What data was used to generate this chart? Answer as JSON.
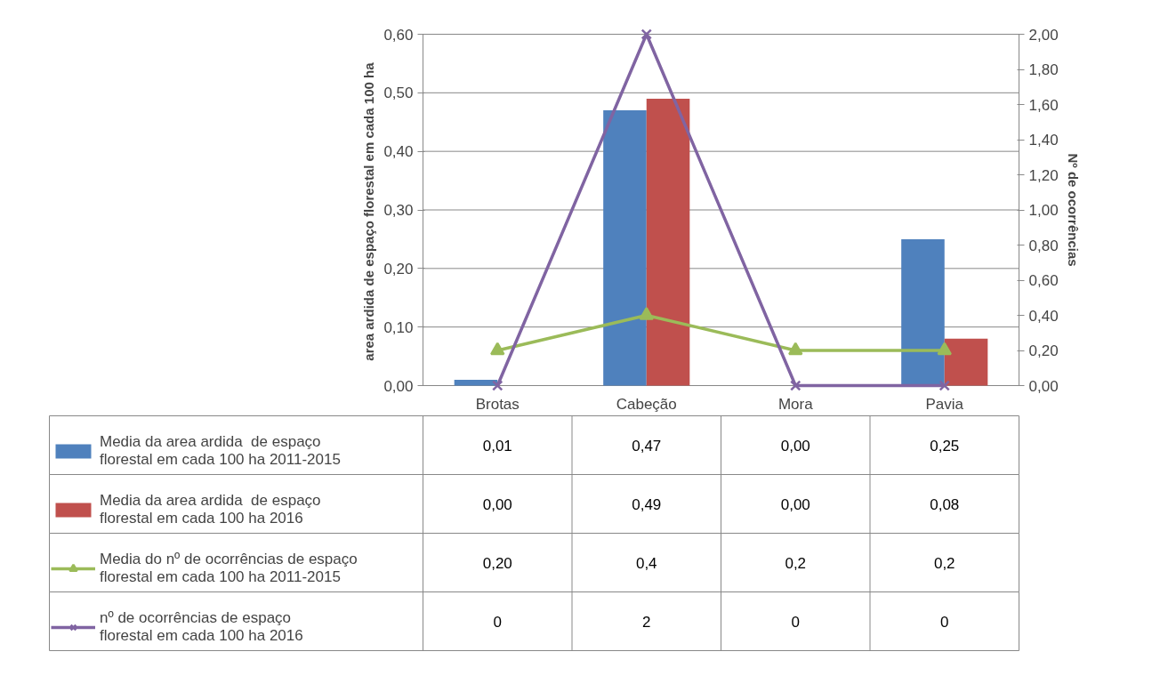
{
  "chart_data": {
    "type": "bar",
    "ylabel": "area ardida  de espaço florestal em cada 100 ha",
    "y2label": "Nº de ocorrências",
    "categories": [
      "Brotas",
      "Cabeção",
      "Mora",
      "Pavia"
    ],
    "series": [
      {
        "name": "Media da area ardida  de espaço florestal em cada 100 ha 2011-2015",
        "color": "#4f81bd",
        "values": [
          0.01,
          0.47,
          0.0,
          0.25
        ],
        "value_labels": [
          "0,01",
          "0,47",
          "0,00",
          "0,25"
        ]
      },
      {
        "name": "Media da area ardida  de espaço florestal em cada 100 ha 2016",
        "color": "#c0504d",
        "values": [
          0.0,
          0.49,
          0.0,
          0.08
        ],
        "value_labels": [
          "0,00",
          "0,49",
          "0,00",
          "0,08"
        ]
      },
      {
        "name": "Media do nº de ocorrências de espaço florestal em cada 100 ha 2011-2015",
        "type": "line",
        "axis": "y2",
        "marker": "triangle",
        "color": "#9bbb59",
        "values": [
          0.2,
          0.4,
          0.2,
          0.2
        ],
        "value_labels": [
          "0,20",
          "0,4",
          "0,2",
          "0,2"
        ]
      },
      {
        "name": "nº de ocorrências de espaço florestal em cada 100 ha 2016",
        "type": "line",
        "axis": "y2",
        "marker": "cross",
        "color": "#8064a2",
        "values": [
          0,
          2,
          0,
          0
        ],
        "value_labels": [
          "0",
          "2",
          "0",
          "0"
        ]
      }
    ],
    "ylim": [
      0,
      0.6
    ],
    "yticks": [
      {
        "value": 0,
        "label": "0,00"
      },
      {
        "value": 0.1,
        "label": "0,10"
      },
      {
        "value": 0.2,
        "label": "0,20"
      },
      {
        "value": 0.3,
        "label": "0,30"
      },
      {
        "value": 0.4,
        "label": "0,40"
      },
      {
        "value": 0.5,
        "label": "0,50"
      },
      {
        "value": 0.6,
        "label": "0,60"
      }
    ],
    "y2lim": [
      0,
      2
    ],
    "y2ticks": [
      {
        "value": 0,
        "label": "0,00"
      },
      {
        "value": 0.2,
        "label": "0,20"
      },
      {
        "value": 0.4,
        "label": "0,40"
      },
      {
        "value": 0.6,
        "label": "0,60"
      },
      {
        "value": 0.8,
        "label": "0,80"
      },
      {
        "value": 1.0,
        "label": "1,00"
      },
      {
        "value": 1.2,
        "label": "1,20"
      },
      {
        "value": 1.4,
        "label": "1,40"
      },
      {
        "value": 1.6,
        "label": "1,60"
      },
      {
        "value": 1.8,
        "label": "1,80"
      },
      {
        "value": 2.0,
        "label": "2,00"
      }
    ],
    "grid": "y",
    "legend": "bottom",
    "data_labels": true
  }
}
